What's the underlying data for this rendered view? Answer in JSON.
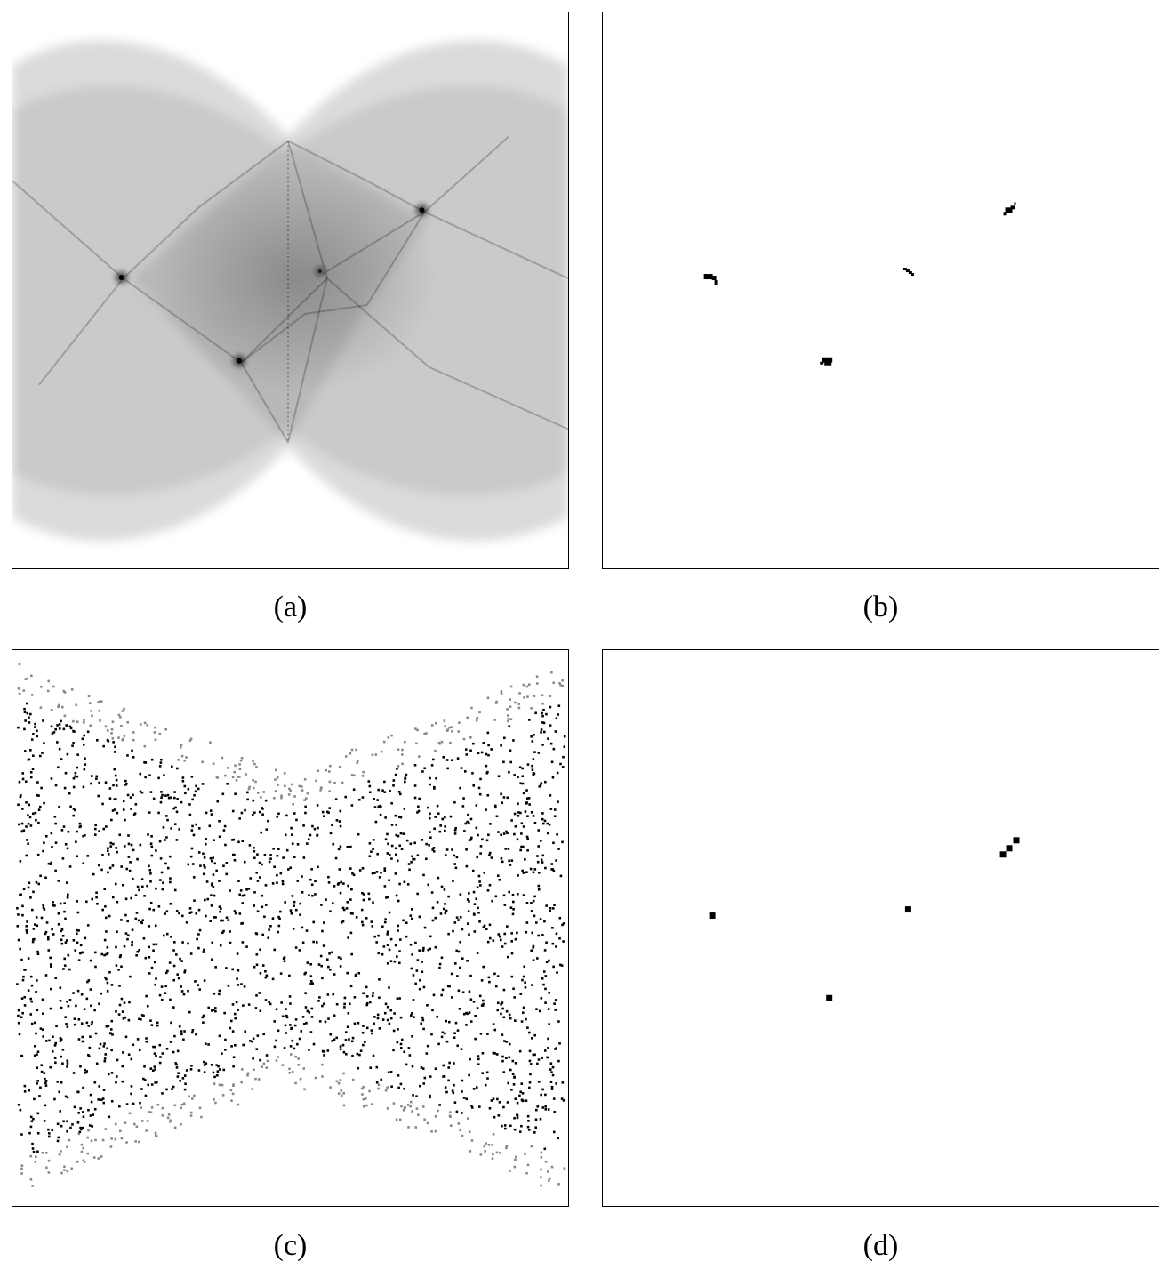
{
  "figure": {
    "panels": [
      {
        "id": "a",
        "caption": "(a)",
        "kind": "hough-accumulator-dense"
      },
      {
        "id": "b",
        "caption": "(b)",
        "kind": "thresholded-peaks"
      },
      {
        "id": "c",
        "caption": "(c)",
        "kind": "hough-accumulator-sparse"
      },
      {
        "id": "d",
        "caption": "(d)",
        "kind": "thresholded-peaks"
      }
    ],
    "colors": {
      "ink": "#000000",
      "background": "#ffffff",
      "gray": "#888888"
    }
  }
}
